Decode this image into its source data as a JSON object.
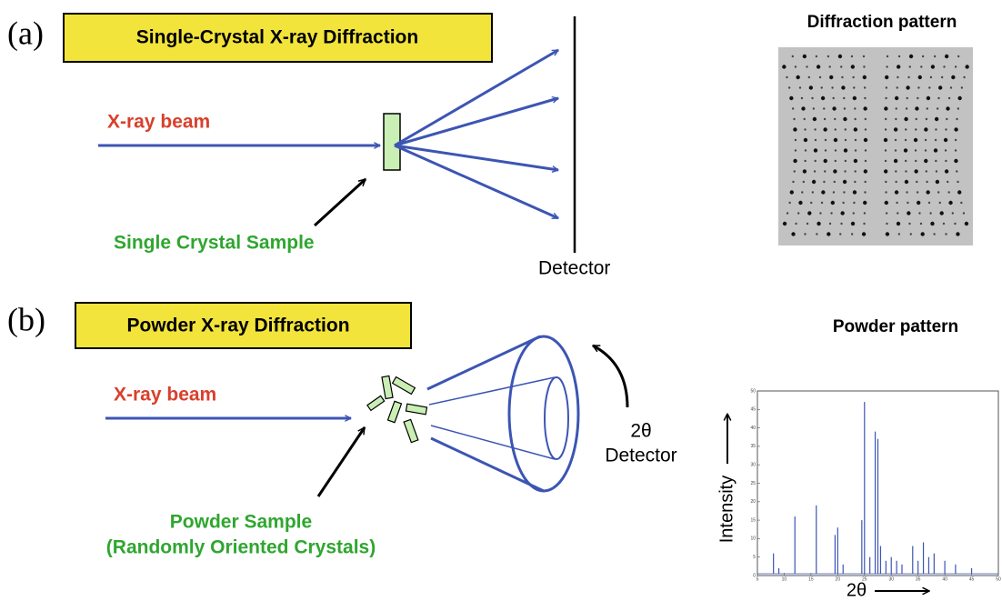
{
  "panel_a": {
    "label": "(a)",
    "title": "Single-Crystal X-ray Diffraction",
    "beam_label": "X-ray beam",
    "sample_label": "Single Crystal Sample",
    "detector_label": "Detector",
    "pattern_title": "Diffraction pattern"
  },
  "panel_b": {
    "label": "(b)",
    "title": "Powder X-ray Diffraction",
    "beam_label": "X-ray beam",
    "sample_label": "Powder Sample",
    "sample_sublabel": "(Randomly Oriented Crystals)",
    "angle_label": "2θ",
    "detector_label": "Detector",
    "pattern_title": "Powder pattern"
  },
  "chart_data": {
    "type": "stem",
    "xlabel": "2θ",
    "ylabel": "Intensity",
    "color": "#3c55b4",
    "x": [
      8,
      9,
      12,
      16,
      19.5,
      20,
      21,
      24.5,
      25,
      26,
      27,
      27.5,
      28,
      29,
      30,
      31,
      32,
      34,
      35,
      36,
      37,
      38,
      40,
      42,
      45
    ],
    "values": [
      6,
      2,
      16,
      19,
      11,
      13,
      3,
      15,
      47,
      5,
      39,
      37,
      8,
      4,
      5,
      4,
      3,
      8,
      4,
      9,
      5,
      6,
      4,
      3,
      2
    ],
    "xlim": [
      5,
      50
    ],
    "ylim": [
      0,
      50
    ],
    "xticks": [
      5,
      10,
      15,
      20,
      25,
      30,
      35,
      40,
      45,
      50
    ],
    "yticks": [
      0,
      5,
      10,
      15,
      20,
      25,
      30,
      35,
      40,
      45,
      50
    ]
  }
}
